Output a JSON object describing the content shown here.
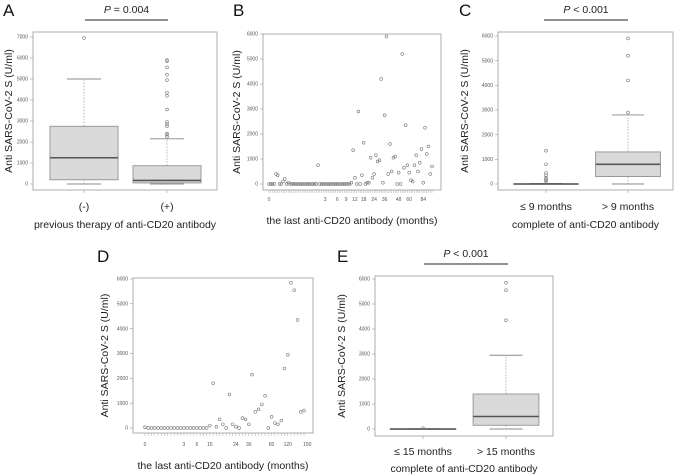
{
  "chart_data": [
    {
      "id": "A",
      "type": "box",
      "letter": "A",
      "ylabel": "Anti  SARS-CoV-2 S (U/ml)",
      "xlabel": "previous therapy of anti-CD20 antibody",
      "pvalue_label": "P",
      "pvalue_text": " = 0.004",
      "ylim": [
        0,
        7000
      ],
      "yticks": [
        0,
        1000,
        2000,
        3000,
        4000,
        5000,
        6000,
        7000
      ],
      "groups": [
        {
          "label": "(-)",
          "min": 0,
          "q1": 200,
          "median": 1250,
          "q3": 2750,
          "max": 5000,
          "outliers": [
            6950
          ]
        },
        {
          "label": "(+)",
          "min": 0,
          "q1": 50,
          "median": 170,
          "q3": 870,
          "max": 2150,
          "outliers": [
            2250,
            2350,
            2400,
            2750,
            2850,
            2950,
            3550,
            4200,
            4350,
            4950,
            5200,
            5550,
            5850,
            5900
          ]
        }
      ]
    },
    {
      "id": "B",
      "type": "scatter",
      "letter": "B",
      "ylabel": "Anti  SARS-CoV-2 S (U/ml)",
      "xlabel": "the last anti-CD20 antibody (months)",
      "ylim": [
        0,
        6000
      ],
      "yticks": [
        0,
        1000,
        2000,
        3000,
        4000,
        5000,
        6000
      ],
      "x_scale": "rank",
      "xticks": [
        {
          "label": "0",
          "rank": 0
        },
        {
          "label": "3",
          "rank": 32
        },
        {
          "label": "6",
          "rank": 39
        },
        {
          "label": "9",
          "rank": 44
        },
        {
          "label": "12",
          "rank": 49
        },
        {
          "label": "18",
          "rank": 54
        },
        {
          "label": "24",
          "rank": 60
        },
        {
          "label": "36",
          "rank": 66
        },
        {
          "label": "48",
          "rank": 74
        },
        {
          "label": "60",
          "rank": 80
        },
        {
          "label": "84",
          "rank": 88
        }
      ],
      "values": [
        0,
        0,
        0,
        0,
        400,
        350,
        0,
        0,
        100,
        200,
        0,
        50,
        0,
        0,
        0,
        0,
        0,
        0,
        0,
        0,
        0,
        0,
        0,
        0,
        0,
        0,
        0,
        0,
        750,
        0,
        0,
        0,
        0,
        0,
        0,
        0,
        0,
        0,
        0,
        0,
        0,
        0,
        0,
        0,
        0,
        0,
        0,
        50,
        1350,
        250,
        0,
        2900,
        0,
        350,
        1650,
        0,
        50,
        50,
        1050,
        250,
        400,
        1150,
        900,
        950,
        4200,
        50,
        2750,
        5900,
        400,
        1600,
        500,
        1050,
        1100,
        0,
        450,
        0,
        5200,
        650,
        2350,
        750,
        450,
        150,
        100,
        750,
        1150,
        500,
        850,
        1400,
        50,
        2250,
        1200,
        1500,
        400,
        700
      ]
    },
    {
      "id": "C",
      "type": "box",
      "letter": "C",
      "ylabel": "Anti  SARS-CoV-2 S (U/ml)",
      "xlabel": "complete of anti-CD20 antibody",
      "pvalue_label": "P",
      "pvalue_text": " < 0.001",
      "ylim": [
        0,
        6000
      ],
      "yticks": [
        0,
        1000,
        2000,
        3000,
        4000,
        5000,
        6000
      ],
      "groups": [
        {
          "label": "≤ 9 months",
          "min": 0,
          "q1": 0,
          "median": 0,
          "q3": 10,
          "max": 20,
          "outliers": [
            100,
            150,
            200,
            250,
            350,
            450,
            800,
            1350
          ]
        },
        {
          "label": "> 9 months",
          "min": 0,
          "q1": 300,
          "median": 800,
          "q3": 1300,
          "max": 2800,
          "outliers": [
            2900,
            4200,
            5200,
            5900
          ]
        }
      ]
    },
    {
      "id": "D",
      "type": "scatter",
      "letter": "D",
      "ylabel": "Anti  SARS-CoV-2 S (U/ml)",
      "xlabel": "the last anti-CD20 antibody (months)",
      "ylim": [
        0,
        6000
      ],
      "yticks": [
        0,
        1000,
        2000,
        3000,
        4000,
        5000,
        6000
      ],
      "x_scale": "rank",
      "xticks": [
        {
          "label": "0",
          "rank": 0
        },
        {
          "label": "3",
          "rank": 12
        },
        {
          "label": "6",
          "rank": 16
        },
        {
          "label": "15",
          "rank": 20
        },
        {
          "label": "24",
          "rank": 28
        },
        {
          "label": "36",
          "rank": 32
        },
        {
          "label": "60",
          "rank": 39
        },
        {
          "label": "120",
          "rank": 44
        },
        {
          "label": "150",
          "rank": 50
        }
      ],
      "values": [
        30,
        0,
        0,
        0,
        0,
        0,
        0,
        0,
        0,
        0,
        0,
        0,
        0,
        0,
        0,
        0,
        0,
        0,
        0,
        0,
        100,
        1800,
        50,
        350,
        150,
        0,
        1350,
        150,
        50,
        0,
        400,
        350,
        150,
        2150,
        650,
        750,
        950,
        1300,
        0,
        450,
        200,
        150,
        300,
        2400,
        2950,
        5850,
        5550,
        4350,
        650,
        700
      ]
    },
    {
      "id": "E",
      "type": "box",
      "letter": "E",
      "ylabel": "Anti  SARS-CoV-2 S (U/ml)",
      "xlabel": "complete of anti-CD20 antibody",
      "pvalue_label": "P",
      "pvalue_text": " < 0.001",
      "ylim": [
        0,
        6000
      ],
      "yticks": [
        0,
        1000,
        2000,
        3000,
        4000,
        5000,
        6000
      ],
      "groups": [
        {
          "label": "≤ 15 months",
          "min": 0,
          "q1": 0,
          "median": 0,
          "q3": 5,
          "max": 10,
          "outliers": [
            30
          ]
        },
        {
          "label": "> 15 months",
          "min": 0,
          "q1": 150,
          "median": 500,
          "q3": 1400,
          "max": 2950,
          "outliers": [
            4350,
            5550,
            5850
          ]
        }
      ]
    }
  ],
  "colors": {
    "box_fill": "#d9d9d9",
    "frame": "#999999",
    "point": "#777777",
    "median": "#555555"
  }
}
